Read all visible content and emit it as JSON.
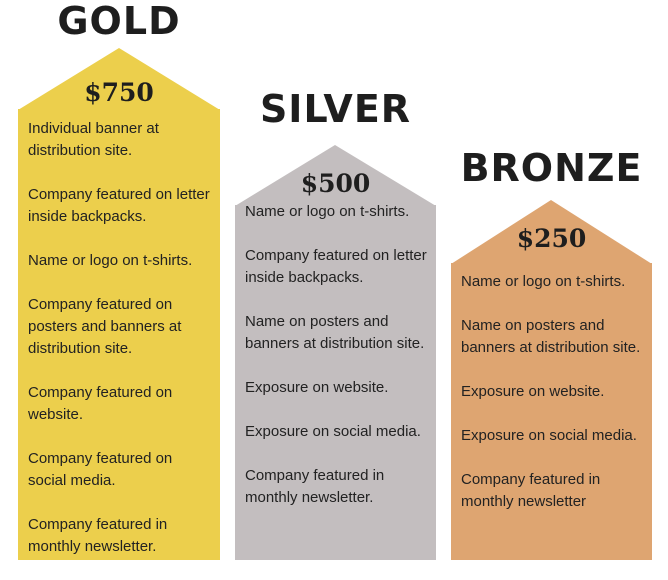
{
  "tiers": [
    {
      "id": "gold",
      "title": "GOLD",
      "price": "$750",
      "color": "#eccf4c",
      "features": [
        "Individual banner at distribution site.",
        "Company featured on letter inside backpacks.",
        "Name or logo on t-shirts.",
        "Company featured on posters and banners at distribution site.",
        "Company featured on website.",
        "Company featured on social media.",
        "Company featured in monthly newsletter."
      ]
    },
    {
      "id": "silver",
      "title": "SILVER",
      "price": "$500",
      "color": "#c3bebf",
      "features": [
        "Name or logo on t-shirts.",
        "Company featured on letter inside backpacks.",
        "Name on posters and banners at distribution site.",
        "Exposure on website.",
        "Exposure on social media.",
        "Company featured in monthly newsletter."
      ]
    },
    {
      "id": "bronze",
      "title": "BRONZE",
      "price": "$250",
      "color": "#dea571",
      "features": [
        "Name or logo on t-shirts.",
        "Name on posters and banners at distribution site.",
        "Exposure on website.",
        "Exposure on social media.",
        "Company featured in monthly newsletter"
      ]
    }
  ]
}
